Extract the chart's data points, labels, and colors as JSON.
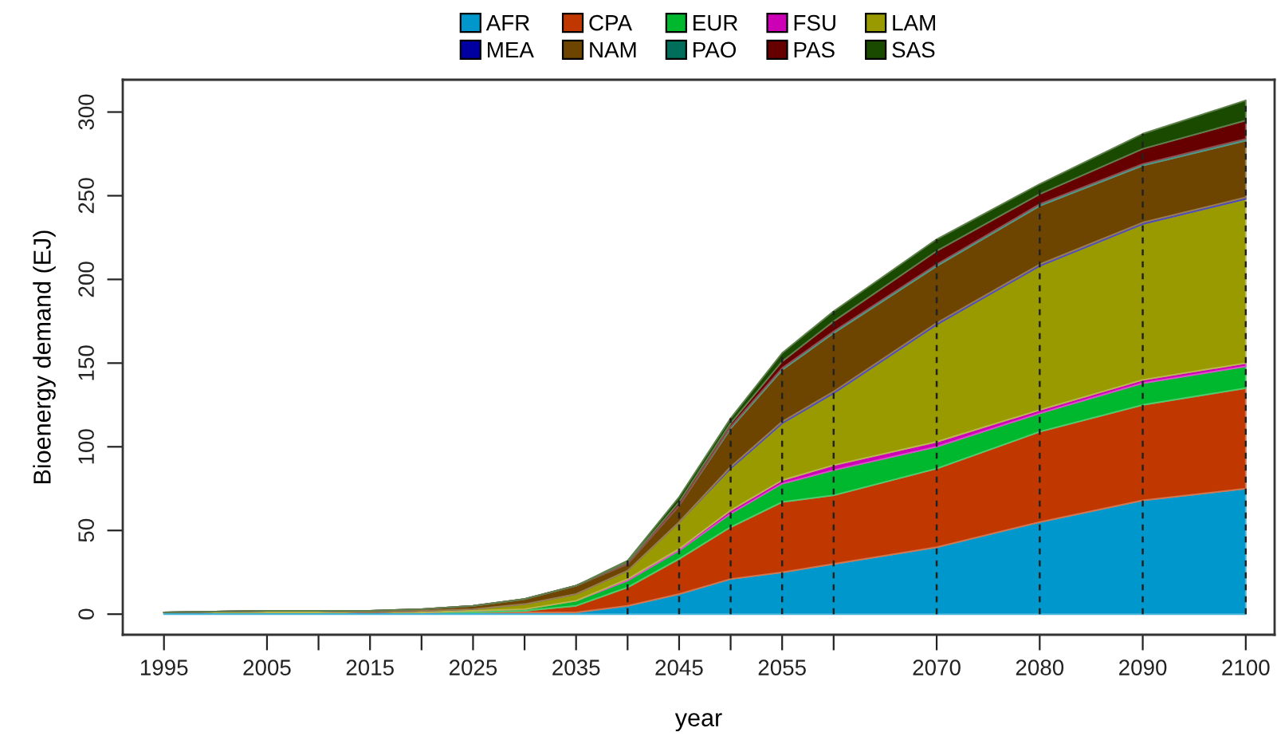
{
  "chart_data": {
    "type": "area",
    "stacked": true,
    "xlabel": "year",
    "ylabel": "Bioenergy demand (EJ)",
    "x": [
      1995,
      2005,
      2010,
      2015,
      2020,
      2025,
      2030,
      2035,
      2040,
      2045,
      2050,
      2055,
      2060,
      2070,
      2080,
      2090,
      2100
    ],
    "series": [
      {
        "name": "AFR",
        "color": "#0098cc",
        "values": [
          1,
          1,
          1,
          1,
          1,
          1,
          1,
          1,
          5,
          12,
          21,
          25,
          30,
          40,
          55,
          68,
          75
        ]
      },
      {
        "name": "CPA",
        "color": "#c03800",
        "values": [
          0,
          0,
          0,
          0,
          0,
          0,
          1,
          4,
          11,
          21,
          31,
          42,
          41,
          47,
          54,
          57,
          60
        ]
      },
      {
        "name": "EUR",
        "color": "#00b82e",
        "values": [
          0,
          0,
          0,
          0,
          0,
          1,
          1,
          3,
          4,
          5,
          8,
          11,
          15,
          13,
          11,
          13,
          13
        ]
      },
      {
        "name": "FSU",
        "color": "#cc00b4",
        "values": [
          0,
          0,
          0,
          0,
          0,
          0,
          0,
          0,
          1,
          1,
          2,
          2,
          3,
          3,
          2,
          2,
          2
        ]
      },
      {
        "name": "LAM",
        "color": "#999900",
        "values": [
          0,
          1,
          1,
          0,
          1,
          1,
          3,
          4,
          5,
          16,
          25,
          34,
          43,
          70,
          86,
          93,
          98
        ]
      },
      {
        "name": "MEA",
        "color": "#0000a0",
        "values": [
          0,
          0,
          0,
          0,
          0,
          0,
          0,
          0,
          0,
          0,
          1,
          1,
          1,
          1,
          1,
          1,
          1
        ]
      },
      {
        "name": "NAM",
        "color": "#6e4500",
        "values": [
          0,
          0,
          0,
          1,
          1,
          2,
          3,
          5,
          4,
          10,
          23,
          31,
          35,
          34,
          35,
          34,
          34
        ]
      },
      {
        "name": "PAO",
        "color": "#006e5a",
        "values": [
          0,
          0,
          0,
          0,
          0,
          0,
          0,
          0,
          0,
          0,
          1,
          1,
          1,
          1,
          1,
          1,
          1
        ]
      },
      {
        "name": "PAS",
        "color": "#660000",
        "values": [
          0,
          0,
          0,
          0,
          0,
          0,
          0,
          0,
          1,
          2,
          2,
          4,
          6,
          8,
          6,
          9,
          11
        ]
      },
      {
        "name": "SAS",
        "color": "#1a4a00",
        "values": [
          0,
          0,
          0,
          0,
          0,
          0,
          0,
          0,
          1,
          3,
          3,
          5,
          6,
          7,
          6,
          9,
          12
        ]
      }
    ],
    "xlim": [
      1991,
      2102.8
    ],
    "ylim": [
      -12.3,
      319.3
    ],
    "xticks": [
      1995,
      2005,
      {
        "value": 2010,
        "label": null
      },
      2015,
      {
        "value": 2020,
        "label": null
      },
      2025,
      {
        "value": 2030,
        "label": null
      },
      2035,
      {
        "value": 2040,
        "label": null
      },
      2045,
      {
        "value": 2050,
        "label": null
      },
      2055,
      {
        "value": 2060,
        "label": null
      },
      2070,
      2080,
      2090,
      2100
    ],
    "yticks": [
      0,
      50,
      100,
      150,
      200,
      250,
      300
    ],
    "legend": "top",
    "ref_lines": [
      {
        "axis": "x",
        "value": 2040,
        "line_style": "dashed",
        "color": "#222222"
      },
      {
        "axis": "x",
        "value": 2045,
        "line_style": "dashed",
        "color": "#222222"
      },
      {
        "axis": "x",
        "value": 2050,
        "line_style": "dashed",
        "color": "#222222"
      },
      {
        "axis": "x",
        "value": 2055,
        "line_style": "dashed",
        "color": "#222222"
      },
      {
        "axis": "x",
        "value": 2060,
        "line_style": "dashed",
        "color": "#222222"
      },
      {
        "axis": "x",
        "value": 2070,
        "line_style": "dashed",
        "color": "#222222"
      },
      {
        "axis": "x",
        "value": 2080,
        "line_style": "dashed",
        "color": "#222222"
      },
      {
        "axis": "x",
        "value": 2090,
        "line_style": "dashed",
        "color": "#222222"
      },
      {
        "axis": "x",
        "value": 2100,
        "line_style": "dashed",
        "color": "#222222"
      }
    ]
  }
}
